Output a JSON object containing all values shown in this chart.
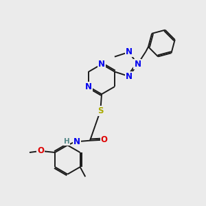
{
  "bg_color": "#ebebeb",
  "bond_color": "#1a1a1a",
  "atom_colors": {
    "N": "#0000ee",
    "O": "#dd0000",
    "S": "#aaaa00",
    "Cl": "#22aa22",
    "C": "#1a1a1a",
    "H": "#558888"
  },
  "lw": 1.4,
  "fs": 8.5
}
